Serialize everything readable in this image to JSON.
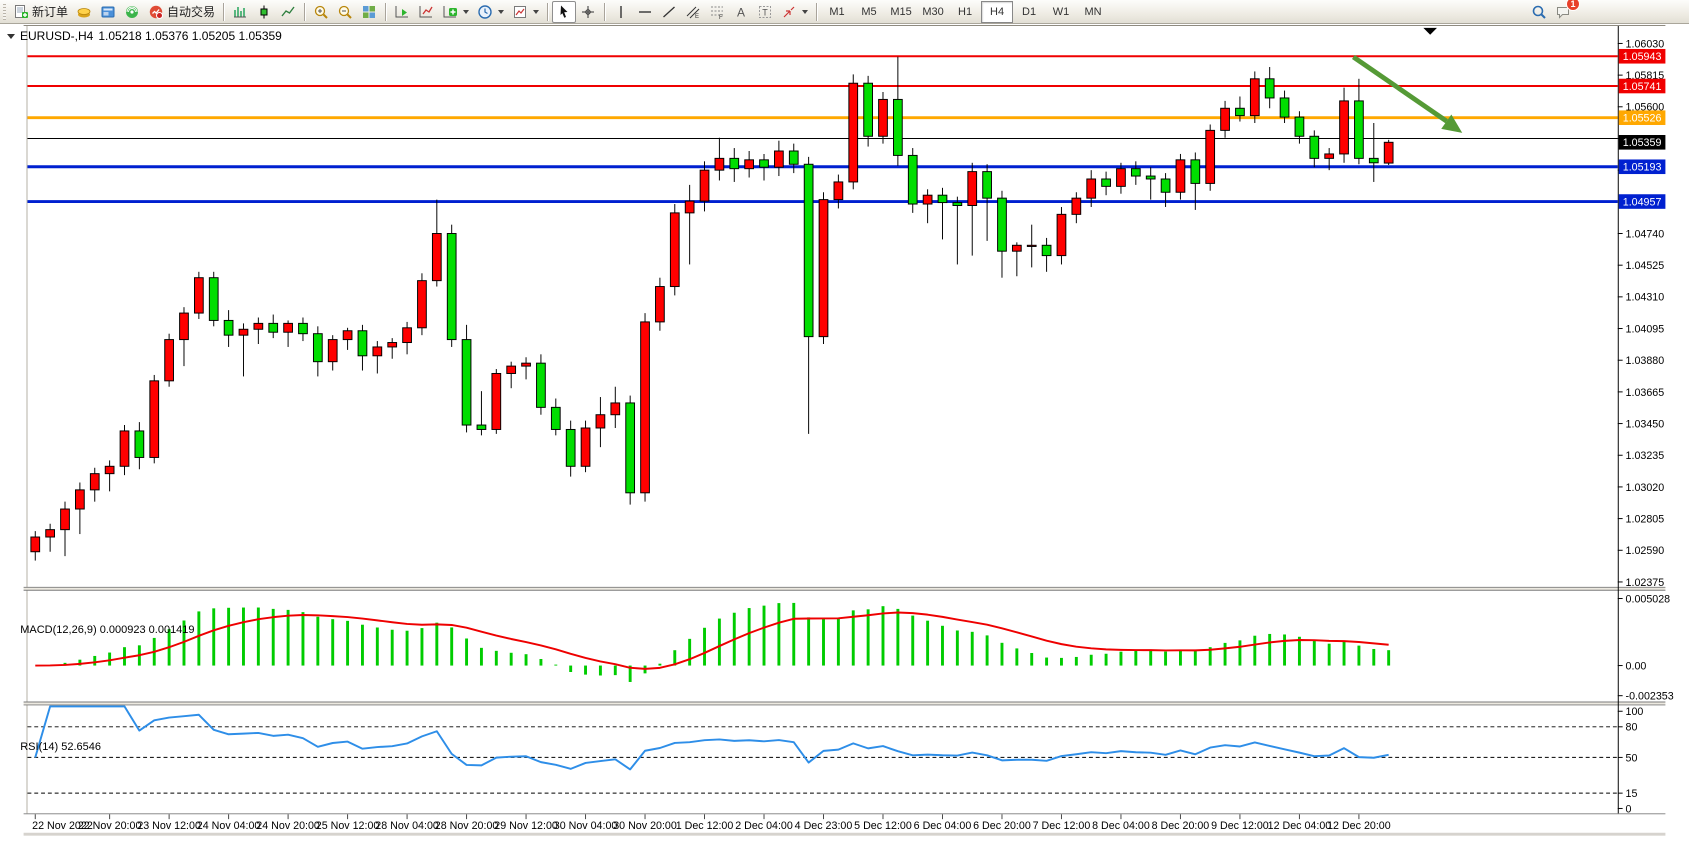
{
  "toolbar": {
    "new_order_label": "新订单",
    "autotrading_label": "自动交易",
    "buttons": [
      {
        "name": "new-order-button",
        "icon": "doc-plus",
        "label_key": "new_order_label"
      },
      {
        "name": "gold-button",
        "icon": "gold"
      },
      {
        "name": "terminal-button",
        "icon": "terminal"
      },
      {
        "name": "signal-button",
        "icon": "signal"
      },
      {
        "name": "autotrading-button",
        "icon": "autotrading",
        "label_key": "autotrading_label"
      },
      {
        "sep": true
      },
      {
        "name": "bar-chart-mode-button",
        "icon": "bars"
      },
      {
        "name": "candlestick-mode-button",
        "icon": "candle"
      },
      {
        "name": "line-chart-mode-button",
        "icon": "linechart"
      },
      {
        "sep": true
      },
      {
        "name": "zoom-in-button",
        "icon": "zoomin"
      },
      {
        "name": "zoom-out-button",
        "icon": "zoomout"
      },
      {
        "name": "tile-windows-button",
        "icon": "tiles"
      },
      {
        "sep": true
      },
      {
        "name": "chart-shift-button",
        "icon": "shift-end"
      },
      {
        "name": "auto-scroll-button",
        "icon": "shift-auto"
      },
      {
        "name": "indicators-button",
        "icon": "plus-green",
        "dd": true
      },
      {
        "name": "periods-button",
        "icon": "clock",
        "dd": true
      },
      {
        "name": "templates-button",
        "icon": "template",
        "dd": true
      },
      {
        "sep": true
      },
      {
        "name": "cursor-button",
        "icon": "cursor",
        "active": true
      },
      {
        "name": "crosshair-button",
        "icon": "crosshair"
      },
      {
        "sep": true
      },
      {
        "name": "vertical-line-button",
        "icon": "vline"
      },
      {
        "name": "horizontal-line-button",
        "icon": "hline"
      },
      {
        "name": "trendline-button",
        "icon": "trendline"
      },
      {
        "name": "channel-button",
        "icon": "channel"
      },
      {
        "name": "fibonacci-button",
        "icon": "fib"
      },
      {
        "name": "text-button",
        "icon": "text-a"
      },
      {
        "name": "text-label-button",
        "icon": "label-t"
      },
      {
        "name": "arrows-button",
        "icon": "arrows",
        "dd": true
      },
      {
        "sep": true
      }
    ],
    "timeframes": [
      "M1",
      "M5",
      "M15",
      "M30",
      "H1",
      "H4",
      "D1",
      "W1",
      "MN"
    ],
    "active_timeframe": "H4",
    "notification_count": "1"
  },
  "chart": {
    "symbol": "EURUSD-,H4",
    "ohlc_line": "1.05218 1.05376 1.05205 1.05359"
  },
  "chart_data": {
    "type": "candlestick",
    "symbol": "EURUSD-",
    "timeframe": "H4",
    "title": "EURUSD-,H4  1.05218 1.05376 1.05205 1.05359",
    "current_candle": {
      "open": 1.05218,
      "high": 1.05376,
      "low": 1.05205,
      "close": 1.05359
    },
    "convention": "red = bullish, green = bearish",
    "up_color": "#FF0000",
    "down_color": "#00DE00",
    "wick_color": "#000000",
    "y_axis_ticks": [
      "1.06030",
      "1.05815",
      "1.05600",
      "1.05385",
      "1.05170",
      "1.04955",
      "1.04740",
      "1.04525",
      "1.04310",
      "1.04095",
      "1.03880",
      "1.03665",
      "1.03450",
      "1.03235",
      "1.03020",
      "1.02805",
      "1.02590",
      "1.02375"
    ],
    "y_axis_hidden_tick": "1.04955",
    "y_min": 1.02375,
    "y_max": 1.0603,
    "levels": [
      {
        "price": 1.05943,
        "color": "#F00000",
        "width": 2
      },
      {
        "price": 1.05741,
        "color": "#F00000",
        "width": 2
      },
      {
        "price": 1.05526,
        "color": "#FFA800",
        "width": 3
      },
      {
        "price": 1.05385,
        "color": "#000000",
        "width": 1
      },
      {
        "price": 1.05193,
        "color": "#0020D0",
        "width": 3
      },
      {
        "price": 1.04957,
        "color": "#0020D0",
        "width": 3
      }
    ],
    "price_badges": [
      {
        "text": "1.05943",
        "bg": "#F00000"
      },
      {
        "text": "1.05741",
        "bg": "#F00000"
      },
      {
        "text": "1.05526",
        "bg": "#FFA800"
      },
      {
        "text": "1.05359",
        "bg": "#000000"
      },
      {
        "text": "1.05193",
        "bg": "#0020D0"
      },
      {
        "text": "1.04957",
        "bg": "#0020D0"
      }
    ],
    "candles": [
      [
        1.0258,
        1.0272,
        1.0252,
        1.0268
      ],
      [
        1.0268,
        1.0277,
        1.0258,
        1.0273
      ],
      [
        1.0273,
        1.0292,
        1.0255,
        1.0287
      ],
      [
        1.0287,
        1.0305,
        1.027,
        1.03
      ],
      [
        1.03,
        1.0315,
        1.0292,
        1.0311
      ],
      [
        1.0311,
        1.032,
        1.0299,
        1.0316
      ],
      [
        1.0316,
        1.0344,
        1.031,
        1.034
      ],
      [
        1.034,
        1.0346,
        1.0314,
        1.0322
      ],
      [
        1.0322,
        1.0378,
        1.0318,
        1.0374
      ],
      [
        1.0374,
        1.0406,
        1.037,
        1.0402
      ],
      [
        1.0402,
        1.0424,
        1.0384,
        1.042
      ],
      [
        1.042,
        1.0448,
        1.0416,
        1.0444
      ],
      [
        1.0444,
        1.0448,
        1.0411,
        1.0415
      ],
      [
        1.0415,
        1.0422,
        1.0397,
        1.0405
      ],
      [
        1.0405,
        1.0413,
        1.0377,
        1.0409
      ],
      [
        1.0409,
        1.0417,
        1.0399,
        1.0413
      ],
      [
        1.0413,
        1.0419,
        1.0403,
        1.0407
      ],
      [
        1.0407,
        1.0415,
        1.0397,
        1.0413
      ],
      [
        1.0413,
        1.0417,
        1.0401,
        1.0406
      ],
      [
        1.0406,
        1.0411,
        1.0377,
        1.0387
      ],
      [
        1.0387,
        1.0405,
        1.0381,
        1.0402
      ],
      [
        1.0402,
        1.041,
        1.0395,
        1.0408
      ],
      [
        1.0408,
        1.0412,
        1.0381,
        1.0391
      ],
      [
        1.0391,
        1.0401,
        1.0379,
        1.0397
      ],
      [
        1.0397,
        1.0403,
        1.0389,
        1.04
      ],
      [
        1.04,
        1.0414,
        1.0392,
        1.041
      ],
      [
        1.041,
        1.0447,
        1.0405,
        1.0442
      ],
      [
        1.0442,
        1.0497,
        1.0438,
        1.0474
      ],
      [
        1.0474,
        1.048,
        1.0397,
        1.0402
      ],
      [
        1.0402,
        1.0412,
        1.0339,
        1.0344
      ],
      [
        1.0344,
        1.0367,
        1.0337,
        1.0341
      ],
      [
        1.0341,
        1.0382,
        1.0338,
        1.0379
      ],
      [
        1.0379,
        1.0387,
        1.0369,
        1.0384
      ],
      [
        1.0384,
        1.039,
        1.0375,
        1.0386
      ],
      [
        1.0386,
        1.0392,
        1.0351,
        1.0356
      ],
      [
        1.0356,
        1.0362,
        1.0337,
        1.0341
      ],
      [
        1.0341,
        1.0347,
        1.0309,
        1.0316
      ],
      [
        1.0316,
        1.0347,
        1.0312,
        1.0342
      ],
      [
        1.0342,
        1.0363,
        1.0329,
        1.0351
      ],
      [
        1.0351,
        1.037,
        1.0342,
        1.0359
      ],
      [
        1.0359,
        1.0364,
        1.029,
        1.0298
      ],
      [
        1.0298,
        1.042,
        1.0292,
        1.0414
      ],
      [
        1.0414,
        1.0444,
        1.0408,
        1.0438
      ],
      [
        1.0438,
        1.0494,
        1.0432,
        1.0488
      ],
      [
        1.0488,
        1.0507,
        1.0453,
        1.0496
      ],
      [
        1.0496,
        1.0523,
        1.0489,
        1.0517
      ],
      [
        1.0517,
        1.0539,
        1.051,
        1.0525
      ],
      [
        1.0525,
        1.0532,
        1.0509,
        1.0518
      ],
      [
        1.0518,
        1.053,
        1.0512,
        1.0524
      ],
      [
        1.0524,
        1.0528,
        1.051,
        1.0519
      ],
      [
        1.0519,
        1.0537,
        1.0513,
        1.053
      ],
      [
        1.053,
        1.0535,
        1.0515,
        1.0521
      ],
      [
        1.0521,
        1.0526,
        1.0338,
        1.0404
      ],
      [
        1.0404,
        1.0502,
        1.0399,
        1.0497
      ],
      [
        1.0497,
        1.0514,
        1.0491,
        1.0509
      ],
      [
        1.0509,
        1.0582,
        1.0504,
        1.0576
      ],
      [
        1.0576,
        1.0581,
        1.0533,
        1.054
      ],
      [
        1.054,
        1.057,
        1.0535,
        1.0565
      ],
      [
        1.0565,
        1.0594,
        1.052,
        1.0527
      ],
      [
        1.0527,
        1.0532,
        1.0488,
        1.0494
      ],
      [
        1.0494,
        1.0504,
        1.0481,
        1.05
      ],
      [
        1.05,
        1.0505,
        1.047,
        1.0495
      ],
      [
        1.0495,
        1.0499,
        1.0453,
        1.0493
      ],
      [
        1.0493,
        1.0522,
        1.0459,
        1.0516
      ],
      [
        1.0516,
        1.0521,
        1.0469,
        1.0498
      ],
      [
        1.0498,
        1.0503,
        1.0444,
        1.0462
      ],
      [
        1.0462,
        1.0468,
        1.0445,
        1.0466
      ],
      [
        1.0466,
        1.048,
        1.0451,
        1.0466
      ],
      [
        1.0466,
        1.0471,
        1.0448,
        1.0459
      ],
      [
        1.0459,
        1.0492,
        1.0453,
        1.0487
      ],
      [
        1.0487,
        1.0502,
        1.0481,
        1.0498
      ],
      [
        1.0498,
        1.0517,
        1.0492,
        1.0511
      ],
      [
        1.0511,
        1.0516,
        1.05,
        1.0506
      ],
      [
        1.0506,
        1.0522,
        1.0501,
        1.0518
      ],
      [
        1.0518,
        1.0523,
        1.0507,
        1.0513
      ],
      [
        1.0513,
        1.0519,
        1.0497,
        1.0511
      ],
      [
        1.0511,
        1.0515,
        1.0492,
        1.0502
      ],
      [
        1.0502,
        1.0528,
        1.0497,
        1.0524
      ],
      [
        1.0524,
        1.0529,
        1.049,
        1.0508
      ],
      [
        1.0508,
        1.0548,
        1.0503,
        1.0544
      ],
      [
        1.0544,
        1.0564,
        1.0539,
        1.0559
      ],
      [
        1.0559,
        1.0567,
        1.055,
        1.0554
      ],
      [
        1.0554,
        1.0584,
        1.0549,
        1.0579
      ],
      [
        1.0579,
        1.0587,
        1.0559,
        1.0566
      ],
      [
        1.0566,
        1.0571,
        1.0549,
        1.0553
      ],
      [
        1.0553,
        1.0557,
        1.0535,
        1.054
      ],
      [
        1.054,
        1.0544,
        1.0519,
        1.0525
      ],
      [
        1.0525,
        1.0532,
        1.0517,
        1.0528
      ],
      [
        1.0528,
        1.0573,
        1.0522,
        1.0564
      ],
      [
        1.0564,
        1.0579,
        1.0521,
        1.0525
      ],
      [
        1.0525,
        1.0549,
        1.0509,
        1.0522
      ],
      [
        1.05218,
        1.05376,
        1.05205,
        1.05359
      ]
    ],
    "x_labels": [
      [
        0,
        "22 Nov 2022"
      ],
      [
        5,
        "22 Nov 20:00"
      ],
      [
        9,
        "23 Nov 12:00"
      ],
      [
        13,
        "24 Nov 04:00"
      ],
      [
        17,
        "24 Nov 20:00"
      ],
      [
        21,
        "25 Nov 12:00"
      ],
      [
        25,
        "28 Nov 04:00"
      ],
      [
        29,
        "28 Nov 20:00"
      ],
      [
        33,
        "29 Nov 12:00"
      ],
      [
        37,
        "30 Nov 04:00"
      ],
      [
        41,
        "30 Nov 20:00"
      ],
      [
        45,
        "1 Dec 12:00"
      ],
      [
        49,
        "2 Dec 04:00"
      ],
      [
        53,
        "4 Dec 23:00"
      ],
      [
        57,
        "5 Dec 12:00"
      ],
      [
        61,
        "6 Dec 04:00"
      ],
      [
        65,
        "6 Dec 20:00"
      ],
      [
        69,
        "7 Dec 12:00"
      ],
      [
        73,
        "8 Dec 04:00"
      ],
      [
        77,
        "8 Dec 20:00"
      ],
      [
        81,
        "9 Dec 12:00"
      ],
      [
        85,
        "12 Dec 04:00"
      ],
      [
        89,
        "12 Dec 20:00"
      ]
    ],
    "indicators": {
      "macd": {
        "label": "MACD(12,26,9)",
        "values": "0.000923 0.001419",
        "fast": 12,
        "slow": 26,
        "signal": 9,
        "histogram_color": "#00CC00",
        "signal_color": "#EE0000",
        "axis": [
          "0.005028",
          "0.00",
          "-0.002353"
        ],
        "max": 0.005028,
        "min": -0.002353
      },
      "rsi": {
        "label": "RSI(14)",
        "value": "52.6546",
        "period": 14,
        "color": "#2E8EE8",
        "levels": [
          80,
          50,
          15
        ],
        "axis": [
          "100",
          "80",
          "50",
          "15",
          "0"
        ]
      }
    },
    "annotation": {
      "type": "arrow",
      "color": "#559A36",
      "from": [
        1368,
        58
      ],
      "to": [
        1464,
        124
      ],
      "tip": [
        1480,
        136
      ]
    }
  }
}
